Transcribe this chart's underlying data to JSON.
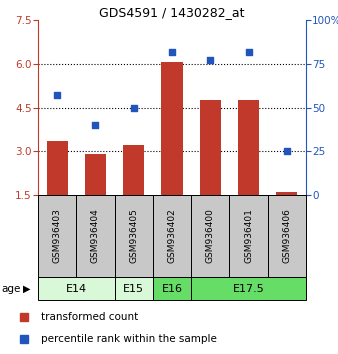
{
  "title": "GDS4591 / 1430282_at",
  "samples": [
    "GSM936403",
    "GSM936404",
    "GSM936405",
    "GSM936402",
    "GSM936400",
    "GSM936401",
    "GSM936406"
  ],
  "bar_values": [
    3.35,
    2.9,
    3.2,
    6.05,
    4.75,
    4.75,
    1.6
  ],
  "percentile_values": [
    57,
    40,
    50,
    82,
    77,
    82,
    25
  ],
  "ylim_left": [
    1.5,
    7.5
  ],
  "ylim_right": [
    0,
    100
  ],
  "yticks_left": [
    1.5,
    3.0,
    4.5,
    6.0,
    7.5
  ],
  "yticks_right": [
    0,
    25,
    50,
    75,
    100
  ],
  "bar_color": "#c0392b",
  "dot_color": "#2255bb",
  "age_groups": [
    {
      "label": "E14",
      "start": 0,
      "end": 2,
      "color": "#d8f8d8"
    },
    {
      "label": "E15",
      "start": 2,
      "end": 3,
      "color": "#d8f8d8"
    },
    {
      "label": "E16",
      "start": 3,
      "end": 4,
      "color": "#66dd66"
    },
    {
      "label": "E17.5",
      "start": 4,
      "end": 7,
      "color": "#66dd66"
    }
  ],
  "legend_bar_label": "transformed count",
  "legend_dot_label": "percentile rank within the sample",
  "age_label": "age",
  "sample_box_color": "#c8c8c8",
  "grid_lines_at": [
    3.0,
    4.5,
    6.0
  ]
}
